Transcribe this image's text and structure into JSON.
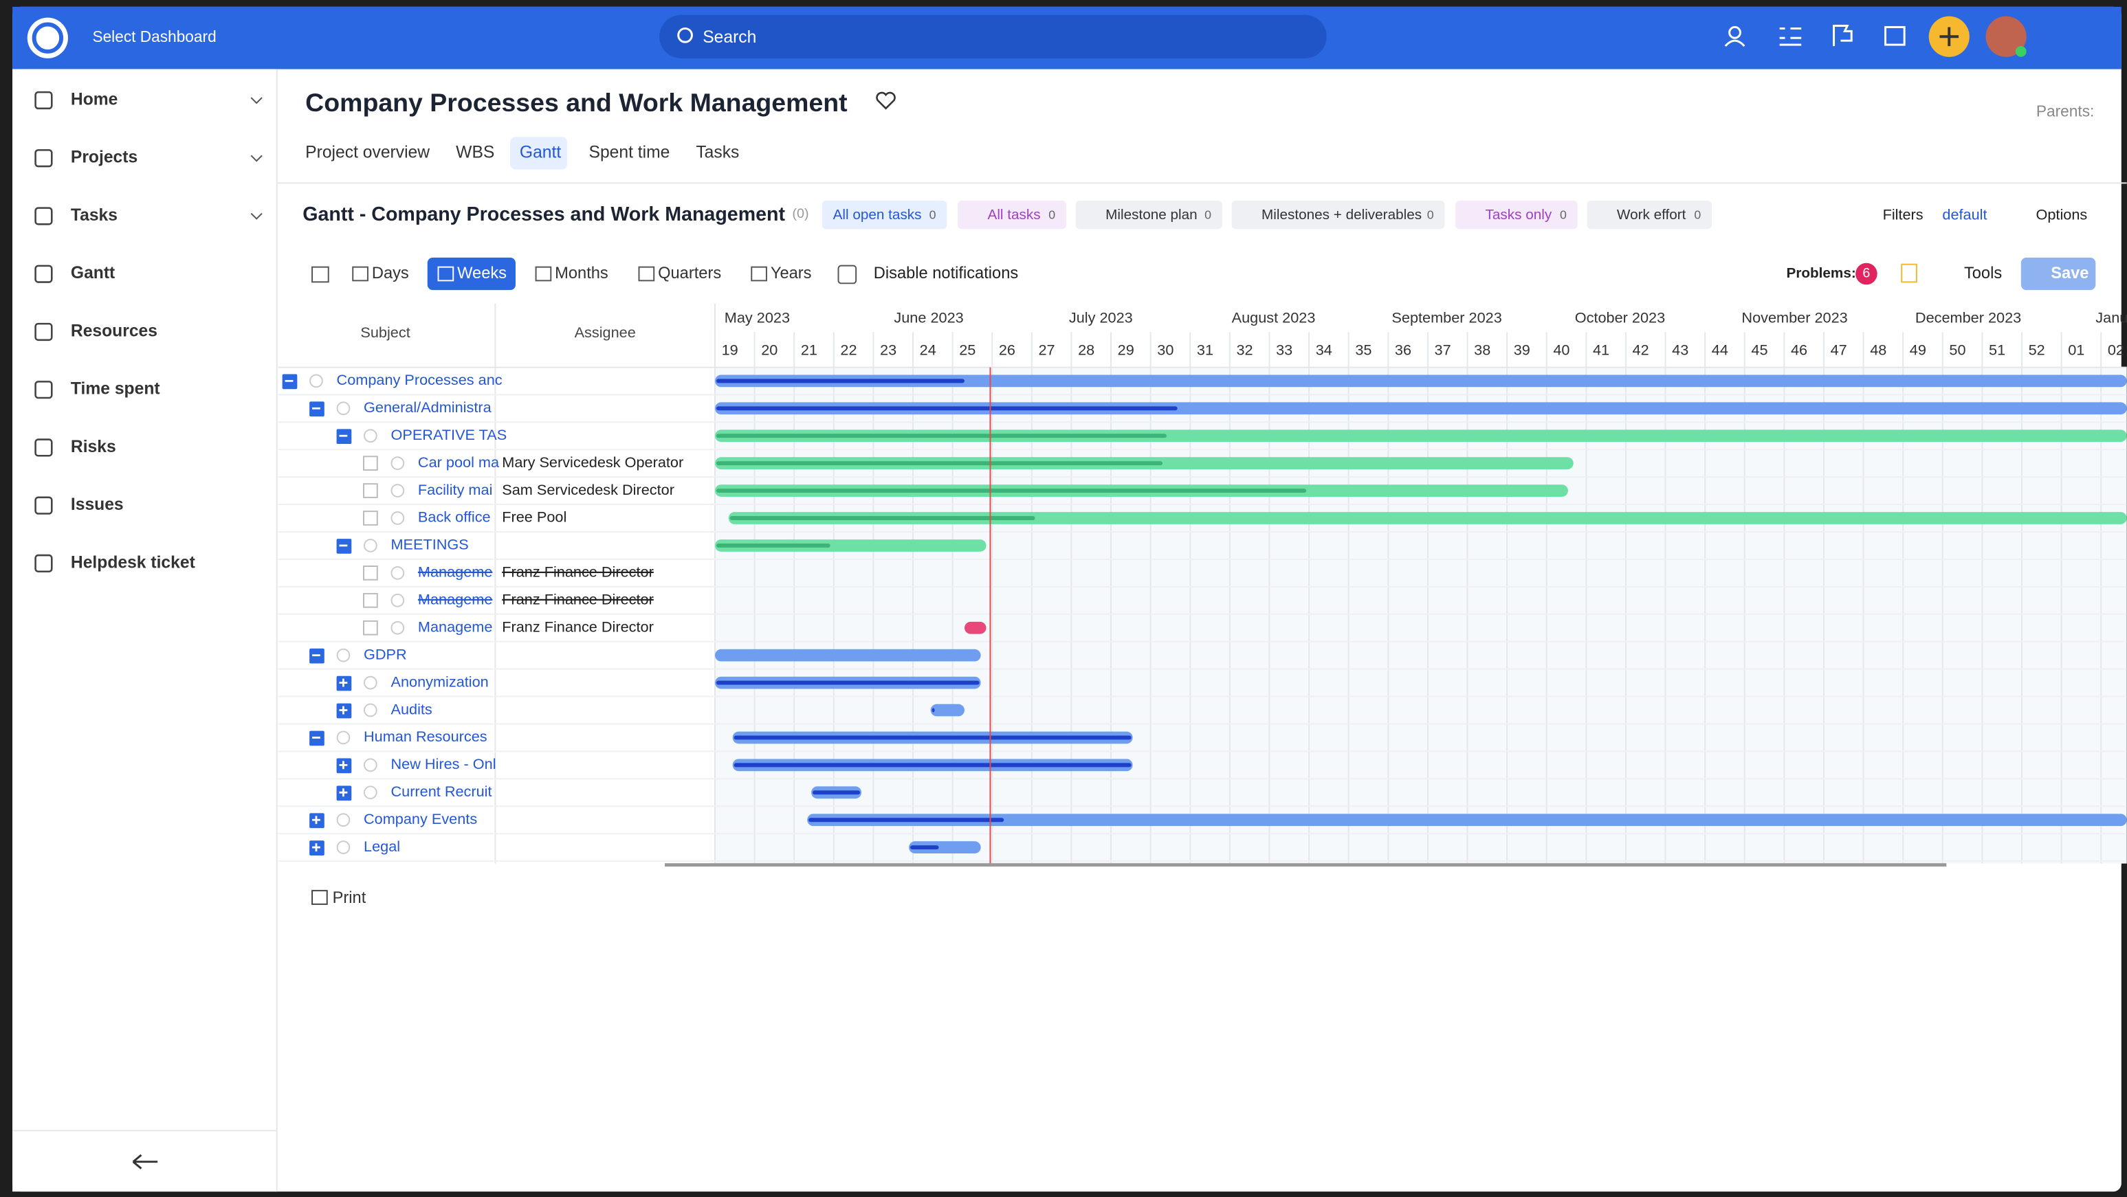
{
  "topbar": {
    "dashboard": "Select Dashboard",
    "search": "Search"
  },
  "sidebar": {
    "items": [
      "Home",
      "Projects",
      "Tasks",
      "Gantt",
      "Resources",
      "Time spent",
      "Risks",
      "Issues",
      "Helpdesk ticket"
    ]
  },
  "header": {
    "title": "Company Processes and Work Management",
    "parents": "Parents:",
    "tabs": [
      "Project overview",
      "WBS",
      "Gantt",
      "Spent time",
      "Tasks"
    ]
  },
  "gantt": {
    "title": "Gantt - Company Processes and Work Management",
    "count": "(0)",
    "filters": [
      {
        "label": "All open tasks",
        "count": "0"
      },
      {
        "label": "All tasks",
        "count": "0"
      },
      {
        "label": "Milestone plan",
        "count": "0"
      },
      {
        "label": "Milestones + deliverables",
        "count": "0"
      },
      {
        "label": "Tasks only",
        "count": "0"
      },
      {
        "label": "Work effort",
        "count": "0"
      }
    ],
    "filters_link": "Filters",
    "default": "default",
    "options": "Options",
    "zoom": [
      "Days",
      "Weeks",
      "Months",
      "Quarters",
      "Years"
    ],
    "disable_notifications": "Disable notifications",
    "problems": "Problems:",
    "problems_count": "6",
    "tools": "Tools",
    "save": "Save",
    "columns": [
      "Subject",
      "Assignee"
    ],
    "months": [
      "May 2023",
      "June 2023",
      "July 2023",
      "August 2023",
      "September 2023",
      "October 2023",
      "November 2023",
      "December 2023",
      "Janu"
    ],
    "weeks": [
      "19",
      "20",
      "21",
      "22",
      "23",
      "24",
      "25",
      "26",
      "27",
      "28",
      "29",
      "30",
      "31",
      "32",
      "33",
      "34",
      "35",
      "36",
      "37",
      "38",
      "39",
      "40",
      "41",
      "42",
      "43",
      "44",
      "45",
      "46",
      "47",
      "48",
      "49",
      "50",
      "51",
      "52",
      "01",
      "02"
    ],
    "rows": [
      {
        "subject": "Company Processes anc"
      },
      {
        "subject": "General/Administra"
      },
      {
        "subject": "OPERATIVE TAS"
      },
      {
        "subject": "Car pool ma",
        "assignee": "Mary Servicedesk Operator"
      },
      {
        "subject": "Facility mai",
        "assignee": "Sam Servicedesk Director"
      },
      {
        "subject": "Back office",
        "assignee": "Free Pool"
      },
      {
        "subject": "MEETINGS"
      },
      {
        "subject": "Manageme",
        "assignee": "Franz Finance Director"
      },
      {
        "subject": "Manageme",
        "assignee": "Franz Finance Director"
      },
      {
        "subject": "Manageme",
        "assignee": "Franz Finance Director"
      },
      {
        "subject": "GDPR"
      },
      {
        "subject": "Anonymization"
      },
      {
        "subject": "Audits"
      },
      {
        "subject": "Human Resources"
      },
      {
        "subject": "New Hires - Onl"
      },
      {
        "subject": "Current Recruit"
      },
      {
        "subject": "Company Events"
      },
      {
        "subject": "Legal"
      }
    ]
  },
  "print": "Print"
}
